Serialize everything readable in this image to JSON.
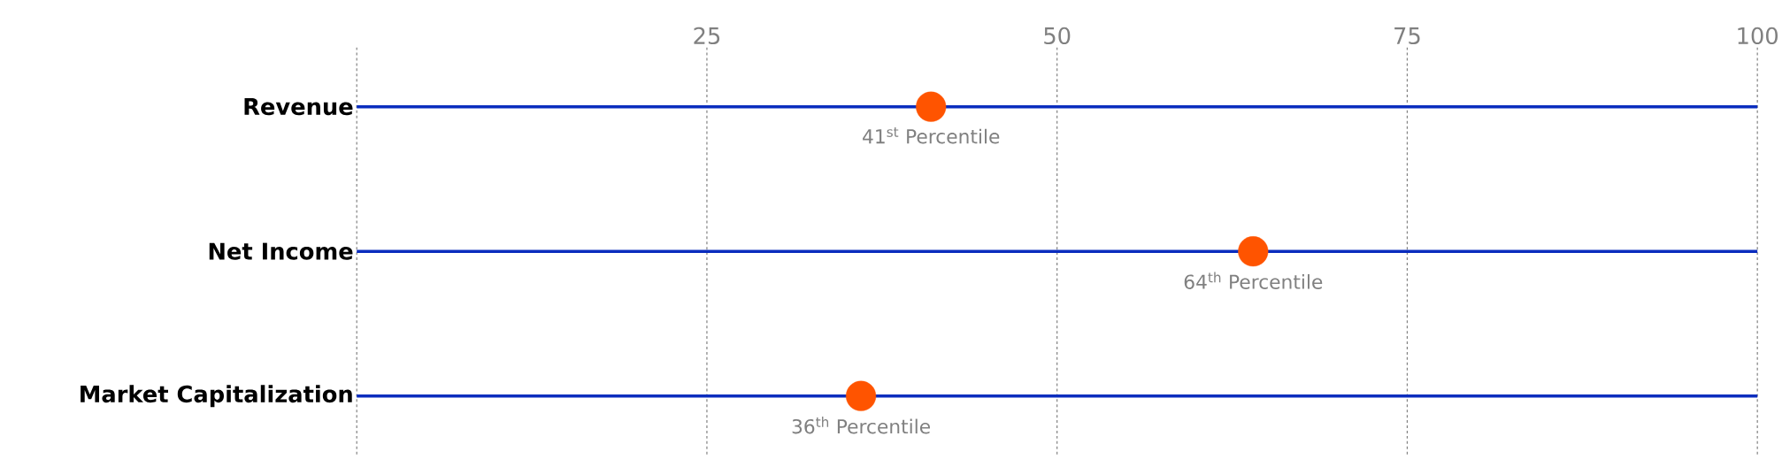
{
  "chart_data": {
    "type": "scatter",
    "orientation": "horizontal",
    "categories": [
      "Revenue",
      "Net Income",
      "Market Capitalization"
    ],
    "values": [
      41,
      64,
      36
    ],
    "value_labels": [
      "41$^{st}$ Percentile",
      "64$^{th}$ Percentile",
      "36$^{th}$ Percentile"
    ],
    "color": "#ff5400",
    "xlim": [
      0,
      100
    ],
    "xticks": [
      {
        "value": 0,
        "label": null
      },
      25,
      50,
      75,
      100
    ],
    "grid": true
  }
}
